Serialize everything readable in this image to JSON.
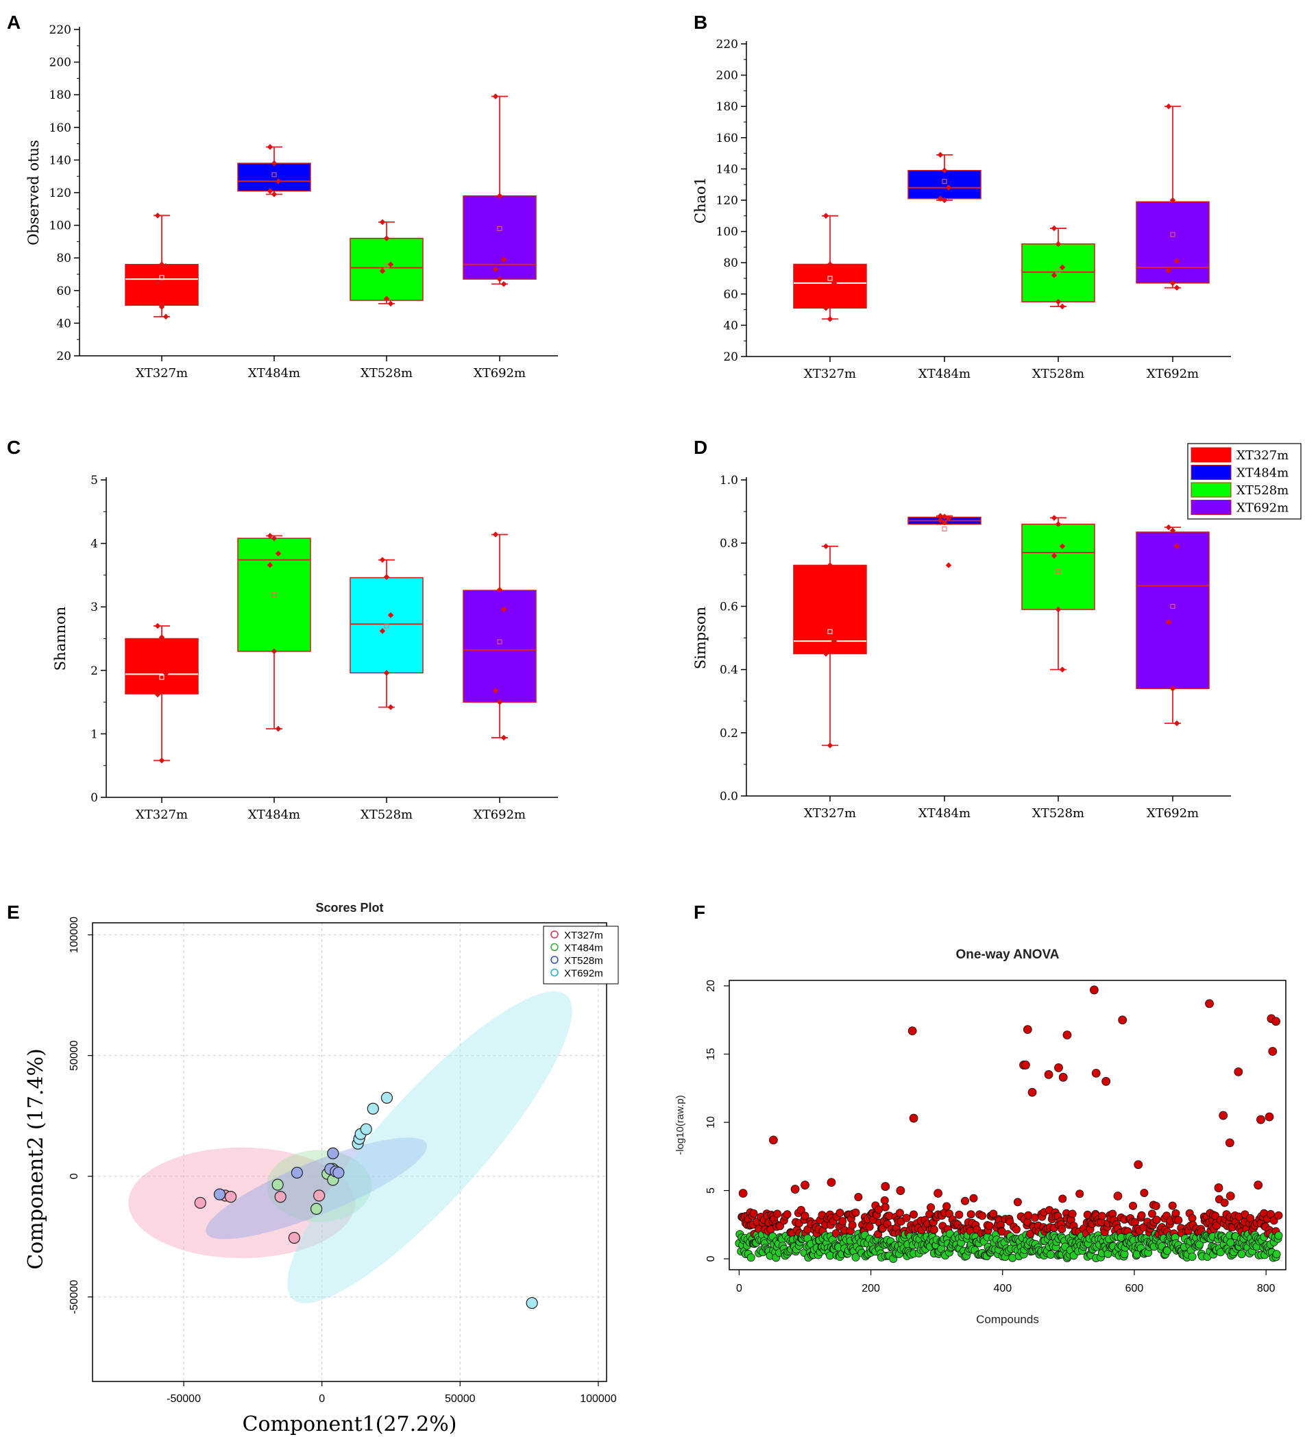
{
  "chart_data": [
    {
      "panel": "A",
      "type": "box",
      "ylabel": "Observed otus",
      "ylim": [
        20,
        220
      ],
      "yticks": [
        20,
        40,
        60,
        80,
        100,
        120,
        140,
        160,
        180,
        200,
        220
      ],
      "categories": [
        "XT327m",
        "XT484m",
        "XT528m",
        "XT692m"
      ],
      "boxes": [
        {
          "min": 44,
          "q1": 51,
          "median": 67,
          "q3": 76,
          "max": 106,
          "mean": 68,
          "color": "#ff0000",
          "points": [
            106,
            76,
            75,
            65,
            50,
            44
          ]
        },
        {
          "min": 119,
          "q1": 121,
          "median": 127,
          "q3": 138,
          "max": 148,
          "mean": 131,
          "color": "#0000ff",
          "points": [
            148,
            138,
            127,
            121,
            119
          ]
        },
        {
          "min": 52,
          "q1": 54,
          "median": 74,
          "q3": 92,
          "max": 102,
          "mean": 75,
          "color": "#00ff00",
          "points": [
            102,
            92,
            76,
            72,
            55,
            52
          ]
        },
        {
          "min": 64,
          "q1": 67,
          "median": 76,
          "q3": 118,
          "max": 179,
          "mean": 98,
          "color": "#8000ff",
          "points": [
            179,
            118,
            79,
            73,
            67,
            64
          ]
        }
      ]
    },
    {
      "panel": "B",
      "type": "box",
      "ylabel": "Chao1",
      "ylim": [
        20,
        220
      ],
      "yticks": [
        20,
        40,
        60,
        80,
        100,
        120,
        140,
        160,
        180,
        200,
        220
      ],
      "categories": [
        "XT327m",
        "XT484m",
        "XT528m",
        "XT692m"
      ],
      "boxes": [
        {
          "min": 44,
          "q1": 51,
          "median": 67,
          "q3": 79,
          "max": 110,
          "mean": 70,
          "color": "#ff0000",
          "points": [
            110,
            79,
            67,
            51,
            44
          ]
        },
        {
          "min": 120,
          "q1": 121,
          "median": 128,
          "q3": 139,
          "max": 149,
          "mean": 132,
          "color": "#0000ff",
          "points": [
            149,
            139,
            128,
            121,
            120
          ]
        },
        {
          "min": 52,
          "q1": 55,
          "median": 74,
          "q3": 92,
          "max": 102,
          "mean": 75,
          "color": "#00ff00",
          "points": [
            102,
            92,
            77,
            72,
            55,
            52
          ]
        },
        {
          "min": 64,
          "q1": 67,
          "median": 77,
          "q3": 119,
          "max": 180,
          "mean": 98,
          "color": "#8000ff",
          "points": [
            180,
            120,
            81,
            75,
            67,
            64
          ]
        }
      ]
    },
    {
      "panel": "C",
      "type": "box",
      "ylabel": "Shannon",
      "ylim": [
        0,
        5
      ],
      "yticks": [
        0,
        1,
        2,
        3,
        4,
        5
      ],
      "categories": [
        "XT327m",
        "XT484m",
        "XT528m",
        "XT692m"
      ],
      "boxes": [
        {
          "min": 0.58,
          "q1": 1.63,
          "median": 1.94,
          "q3": 2.5,
          "max": 2.7,
          "mean": 1.89,
          "color": "#ff0000",
          "points": [
            2.7,
            2.52,
            1.95,
            1.62,
            0.58
          ]
        },
        {
          "min": 1.08,
          "q1": 2.3,
          "median": 3.74,
          "q3": 4.08,
          "max": 4.12,
          "mean": 3.19,
          "color": "#00ff00",
          "points": [
            4.12,
            4.08,
            3.84,
            3.66,
            2.3,
            1.08
          ]
        },
        {
          "min": 1.42,
          "q1": 1.96,
          "median": 2.73,
          "q3": 3.46,
          "max": 3.74,
          "mean": 2.7,
          "color": "#00ffff",
          "points": [
            3.74,
            3.47,
            2.87,
            2.62,
            1.96,
            1.42
          ]
        },
        {
          "min": 0.94,
          "q1": 1.5,
          "median": 2.32,
          "q3": 3.26,
          "max": 4.14,
          "mean": 2.45,
          "color": "#8000ff",
          "points": [
            4.14,
            3.27,
            2.96,
            1.68,
            1.5,
            0.94
          ]
        }
      ]
    },
    {
      "panel": "D",
      "type": "box",
      "ylabel": "Simpson",
      "ylim": [
        0.0,
        1.0
      ],
      "yticks": [
        0.0,
        0.2,
        0.4,
        0.6,
        0.8,
        1.0
      ],
      "categories": [
        "XT327m",
        "XT484m",
        "XT528m",
        "XT692m"
      ],
      "boxes": [
        {
          "min": 0.16,
          "q1": 0.45,
          "median": 0.49,
          "q3": 0.73,
          "max": 0.79,
          "mean": 0.52,
          "color": "#ff0000",
          "points": [
            0.79,
            0.73,
            0.49,
            0.45,
            0.16
          ]
        },
        {
          "min": 0.86,
          "q1": 0.86,
          "median": 0.871,
          "q3": 0.882,
          "max": 0.886,
          "mean": 0.845,
          "color": "#0000ff",
          "points": [
            0.886,
            0.884,
            0.878,
            0.872,
            0.865,
            0.73
          ]
        },
        {
          "min": 0.4,
          "q1": 0.59,
          "median": 0.77,
          "q3": 0.86,
          "max": 0.88,
          "mean": 0.71,
          "color": "#00ff00",
          "points": [
            0.88,
            0.86,
            0.79,
            0.76,
            0.59,
            0.4
          ]
        },
        {
          "min": 0.23,
          "q1": 0.34,
          "median": 0.665,
          "q3": 0.835,
          "max": 0.85,
          "mean": 0.6,
          "color": "#8000ff",
          "points": [
            0.85,
            0.84,
            0.79,
            0.55,
            0.34,
            0.23
          ]
        }
      ],
      "legend": [
        {
          "label": "XT327m",
          "color": "#ff0000"
        },
        {
          "label": "XT484m",
          "color": "#0000ff"
        },
        {
          "label": "XT528m",
          "color": "#00ff00"
        },
        {
          "label": "XT692m",
          "color": "#8000ff"
        }
      ]
    },
    {
      "panel": "E",
      "type": "scatter",
      "title": "Scores Plot",
      "xlabel": "Component1(27.2%)",
      "ylabel": "Component2 (17.4%)",
      "xlim": [
        -83000,
        103000
      ],
      "ylim": [
        -85000,
        105000
      ],
      "xticks": [
        -50000,
        0,
        50000,
        100000
      ],
      "yticks": [
        -50000,
        0,
        50000,
        100000
      ],
      "series": [
        {
          "name": "XT327m",
          "color": "#e0305a",
          "fill": "#f4a6bc",
          "points": [
            [
              -44000,
              -11000
            ],
            [
              -35000,
              -8000
            ],
            [
              -33000,
              -8500
            ],
            [
              -15000,
              -8500
            ],
            [
              -1000,
              -8000
            ],
            [
              -10000,
              -25500
            ]
          ],
          "ellipse": {
            "cx": -29000,
            "cy": -11000,
            "rx": 41000,
            "ry": 20000,
            "angle": 0
          }
        },
        {
          "name": "XT484m",
          "color": "#3aa83a",
          "fill": "#a8e0a8",
          "points": [
            [
              -16000,
              -3500
            ],
            [
              -2000,
              -13500
            ],
            [
              2000,
              1000
            ],
            [
              4000,
              -1500
            ],
            [
              4000,
              3000
            ]
          ],
          "ellipse": {
            "cx": -1000,
            "cy": -4000,
            "rx": 19000,
            "ry": 13000,
            "angle": 0
          }
        },
        {
          "name": "XT528m",
          "color": "#3050c0",
          "fill": "#9aa8e8",
          "points": [
            [
              -37000,
              -7500
            ],
            [
              -9000,
              1500
            ],
            [
              3000,
              3000
            ],
            [
              5000,
              2000
            ],
            [
              6000,
              1500
            ],
            [
              4000,
              9500
            ]
          ],
          "ellipse": {
            "cx": -2000,
            "cy": -5000,
            "rx": 43000,
            "ry": 9500,
            "angle": -22
          }
        },
        {
          "name": "XT692m",
          "color": "#20b0c8",
          "fill": "#a8e8f4",
          "points": [
            [
              13000,
              13500
            ],
            [
              13500,
              15500
            ],
            [
              14000,
              17500
            ],
            [
              16000,
              19500
            ],
            [
              18500,
              28000
            ],
            [
              23500,
              32500
            ],
            [
              76000,
              -52500
            ]
          ],
          "ellipse": {
            "cx": 39000,
            "cy": 12000,
            "rx": 74000,
            "ry": 19000,
            "angle": -48
          }
        }
      ],
      "legend": [
        "XT327m",
        "XT484m",
        "XT528m",
        "XT692m"
      ]
    },
    {
      "panel": "F",
      "type": "scatter",
      "title": "One-way ANOVA",
      "xlabel": "Compounds",
      "ylabel": "-log10(raw.p)",
      "xlim": [
        -15,
        830
      ],
      "ylim": [
        -0.8,
        20.4
      ],
      "xticks": [
        0,
        200,
        400,
        600,
        800
      ],
      "yticks": [
        0,
        5,
        10,
        15,
        20
      ],
      "significant_color": "#d00000",
      "nonsignificant_color": "#22cc22",
      "n_compounds": 820,
      "significant_highlights": [
        [
          6,
          4.8
        ],
        [
          52,
          8.7
        ],
        [
          85,
          5.1
        ],
        [
          100,
          5.4
        ],
        [
          140,
          5.6
        ],
        [
          222,
          5.3
        ],
        [
          245,
          5.0
        ],
        [
          263,
          16.7
        ],
        [
          265,
          10.3
        ],
        [
          302,
          4.8
        ],
        [
          432,
          14.2
        ],
        [
          435,
          14.2
        ],
        [
          438,
          16.8
        ],
        [
          445,
          12.2
        ],
        [
          470,
          13.5
        ],
        [
          485,
          14.0
        ],
        [
          492,
          13.3
        ],
        [
          498,
          16.4
        ],
        [
          539,
          19.7
        ],
        [
          542,
          13.6
        ],
        [
          557,
          13.0
        ],
        [
          575,
          4.6
        ],
        [
          582,
          17.5
        ],
        [
          606,
          6.9
        ],
        [
          714,
          18.7
        ],
        [
          728,
          5.2
        ],
        [
          735,
          10.5
        ],
        [
          745,
          8.5
        ],
        [
          746,
          4.6
        ],
        [
          758,
          13.7
        ],
        [
          788,
          5.4
        ],
        [
          792,
          10.2
        ],
        [
          805,
          10.4
        ],
        [
          808,
          17.6
        ],
        [
          810,
          15.2
        ],
        [
          815,
          17.4
        ]
      ]
    }
  ],
  "panel_labels": {
    "A": "A",
    "B": "B",
    "C": "C",
    "D": "D",
    "E": "E",
    "F": "F"
  }
}
